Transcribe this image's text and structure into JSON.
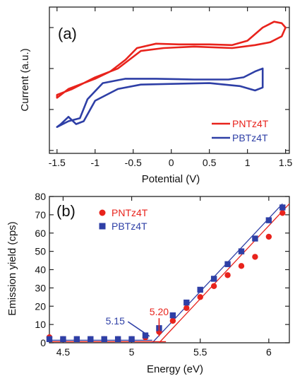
{
  "colors": {
    "pntz4t": "#e8231c",
    "pbtz4t": "#2e3fa6",
    "axis": "#222222"
  },
  "chart_data": [
    {
      "panel_label": "(a)",
      "type": "line",
      "xlabel": "Potential (V)",
      "ylabel": "Current (a.u.)",
      "xlim": [
        -1.6,
        1.55
      ],
      "xticks": [
        "-1.5",
        "-1",
        "-0.5",
        "0",
        "0.5",
        "1",
        "1.5"
      ],
      "ylim": [
        0,
        1
      ],
      "legend": {
        "position": "bottom-right"
      },
      "series": [
        {
          "name": "PNTz4T",
          "color_key": "pntz4t",
          "points": [
            [
              -1.5,
              0.38
            ],
            [
              -1.35,
              0.44
            ],
            [
              -1.0,
              0.51
            ],
            [
              -0.8,
              0.56
            ],
            [
              -0.6,
              0.64
            ],
            [
              -0.45,
              0.72
            ],
            [
              -0.2,
              0.75
            ],
            [
              0.1,
              0.745
            ],
            [
              0.5,
              0.745
            ],
            [
              0.8,
              0.74
            ],
            [
              1.0,
              0.77
            ],
            [
              1.2,
              0.86
            ],
            [
              1.35,
              0.9
            ],
            [
              1.45,
              0.89
            ],
            [
              1.5,
              0.86
            ],
            [
              1.45,
              0.8
            ],
            [
              1.3,
              0.76
            ],
            [
              1.1,
              0.74
            ],
            [
              0.8,
              0.72
            ],
            [
              0.3,
              0.73
            ],
            [
              -0.1,
              0.72
            ],
            [
              -0.4,
              0.7
            ],
            [
              -0.5,
              0.66
            ],
            [
              -0.7,
              0.58
            ],
            [
              -1.0,
              0.52
            ],
            [
              -1.3,
              0.44
            ],
            [
              -1.5,
              0.4
            ],
            [
              -1.5,
              0.38
            ]
          ]
        },
        {
          "name": "PBTz4T",
          "color_key": "pbtz4t",
          "points": [
            [
              -1.5,
              0.18
            ],
            [
              -1.35,
              0.22
            ],
            [
              -1.2,
              0.24
            ],
            [
              -1.1,
              0.37
            ],
            [
              -0.9,
              0.48
            ],
            [
              -0.6,
              0.51
            ],
            [
              -0.2,
              0.51
            ],
            [
              0.3,
              0.505
            ],
            [
              0.75,
              0.505
            ],
            [
              0.95,
              0.52
            ],
            [
              1.1,
              0.56
            ],
            [
              1.2,
              0.58
            ],
            [
              1.2,
              0.45
            ],
            [
              1.1,
              0.43
            ],
            [
              0.9,
              0.46
            ],
            [
              0.5,
              0.48
            ],
            [
              0.0,
              0.475
            ],
            [
              -0.4,
              0.47
            ],
            [
              -0.7,
              0.44
            ],
            [
              -1.0,
              0.36
            ],
            [
              -1.15,
              0.22
            ],
            [
              -1.25,
              0.2
            ],
            [
              -1.35,
              0.25
            ],
            [
              -1.45,
              0.2
            ],
            [
              -1.5,
              0.18
            ]
          ]
        }
      ]
    },
    {
      "panel_label": "(b)",
      "type": "scatter",
      "xlabel": "Energy (eV)",
      "ylabel": "Emission yield (cps)",
      "xlim": [
        4.4,
        6.15
      ],
      "xticks": [
        "4.5",
        "5",
        "5.5",
        "6"
      ],
      "ylim": [
        0,
        80
      ],
      "yticks": [
        "0",
        "10",
        "20",
        "30",
        "40",
        "50",
        "60",
        "70",
        "80"
      ],
      "legend": {
        "position": "top-left"
      },
      "series": [
        {
          "name": "PNTz4T",
          "marker": "circle",
          "color_key": "pntz4t",
          "x": [
            4.4,
            4.5,
            4.6,
            4.7,
            4.8,
            4.9,
            5.0,
            5.1,
            5.2,
            5.3,
            5.4,
            5.5,
            5.6,
            5.7,
            5.8,
            5.9,
            6.0,
            6.1
          ],
          "y": [
            3,
            2,
            2,
            2,
            2,
            2,
            2,
            3,
            6,
            12,
            19,
            25,
            31,
            37,
            42,
            47,
            58,
            71
          ]
        },
        {
          "name": "PBTz4T",
          "marker": "square",
          "color_key": "pbtz4t",
          "x": [
            4.4,
            4.5,
            4.6,
            4.7,
            4.8,
            4.9,
            5.0,
            5.1,
            5.2,
            5.3,
            5.4,
            5.5,
            5.6,
            5.7,
            5.8,
            5.9,
            6.0,
            6.1
          ],
          "y": [
            2,
            2,
            2,
            2,
            2,
            2,
            2,
            4,
            8,
            15,
            22,
            29,
            35,
            43,
            50,
            57,
            67,
            74
          ]
        }
      ],
      "fit_lines": [
        {
          "color_key": "pntz4t",
          "from": [
            5.2,
            0
          ],
          "to": [
            6.15,
            76
          ]
        },
        {
          "color_key": "pbtz4t",
          "from": [
            5.15,
            0
          ],
          "to": [
            6.1,
            76
          ]
        },
        {
          "color_key": "pntz4t",
          "from": [
            4.4,
            0.6
          ],
          "to": [
            5.25,
            0.6
          ]
        },
        {
          "color_key": "pbtz4t",
          "from": [
            4.4,
            1.4
          ],
          "to": [
            5.15,
            1.4
          ]
        }
      ],
      "annotations": [
        {
          "text": "5.20",
          "color_key": "pntz4t",
          "at": [
            5.2,
            15
          ],
          "arrow_to": [
            5.2,
            2
          ]
        },
        {
          "text": "5.15",
          "color_key": "pbtz4t",
          "at": [
            4.88,
            10
          ],
          "arrow_to": [
            5.13,
            2
          ]
        }
      ]
    }
  ]
}
